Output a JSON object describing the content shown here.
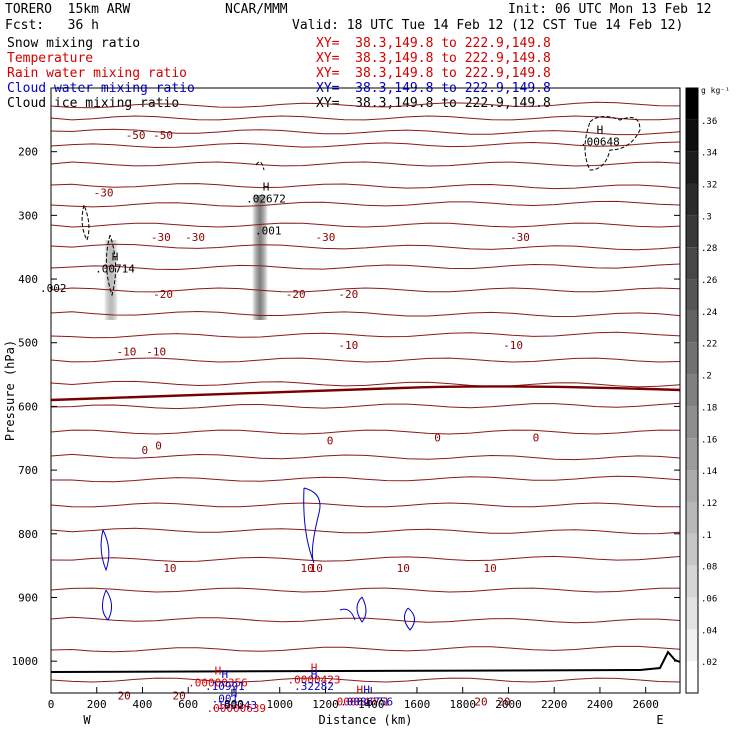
{
  "header": {
    "model": "TORERO  15km ARW",
    "center": "NCAR/MMM",
    "init": "Init: 06 UTC Mon 13 Feb 12",
    "fcst": "Fcst:   36 h",
    "valid": "Valid: 18 UTC Tue 14 Feb 12 (12 CST Tue 14 Feb 12)"
  },
  "fields": [
    {
      "label": "Snow mixing ratio",
      "xy": "",
      "color": "#000000"
    },
    {
      "label": "Temperature",
      "xy": "XY=  38.3,149.8 to 222.9,149.8",
      "color": "#d40000"
    },
    {
      "label": "Rain water mixing ratio",
      "xy": "XY=  38.3,149.8 to 222.9,149.8",
      "color": "#d40000"
    },
    {
      "label": "Cloud water mixing ratio",
      "xy": "XY=  38.3,149.8 to 222.9,149.8",
      "color": "#0000cc"
    },
    {
      "label": "Cloud ice mixing ratio",
      "xy": "XY=  38.3,149.8 to 222.9,149.8",
      "color": "#000000"
    }
  ],
  "snow_xy": "XY=  38.3,149.8 to 222.9,149.8",
  "chart_data": {
    "type": "cross-section",
    "xlabel": "Distance (km)",
    "ylabel": "Pressure (hPa)",
    "xlim": [
      0,
      2750
    ],
    "ylim": [
      1050,
      100
    ],
    "xticks": [
      0,
      200,
      400,
      600,
      800,
      1000,
      1200,
      1400,
      1600,
      1800,
      2000,
      2200,
      2400,
      2600
    ],
    "yticks": [
      200,
      300,
      400,
      500,
      600,
      700,
      800,
      900,
      1000
    ],
    "x_end_labels": {
      "left": "W",
      "right": "E"
    },
    "colorbar": {
      "unit": "g kg⁻¹",
      "ticks": [
        ".02",
        ".04",
        ".06",
        ".08",
        ".1",
        ".12",
        ".14",
        ".16",
        ".18",
        ".2",
        ".22",
        ".24",
        ".26",
        ".28",
        ".3",
        ".32",
        ".34",
        ".36"
      ],
      "range": [
        0,
        0.38
      ]
    },
    "temperature_labels": [
      {
        "x": 370,
        "p": 180,
        "text": "-50"
      },
      {
        "x": 490,
        "p": 180,
        "text": "-50"
      },
      {
        "x": 480,
        "p": 340,
        "text": "-30"
      },
      {
        "x": 630,
        "p": 340,
        "text": "-30"
      },
      {
        "x": 1200,
        "p": 340,
        "text": "-30"
      },
      {
        "x": 2050,
        "p": 340,
        "text": "-30"
      },
      {
        "x": 230,
        "p": 270,
        "text": "-30"
      },
      {
        "x": 490,
        "p": 430,
        "text": "-20"
      },
      {
        "x": 1070,
        "p": 430,
        "text": "-20"
      },
      {
        "x": 1300,
        "p": 430,
        "text": "-20"
      },
      {
        "x": 330,
        "p": 520,
        "text": "-10"
      },
      {
        "x": 460,
        "p": 520,
        "text": "-10"
      },
      {
        "x": 1300,
        "p": 510,
        "text": "-10"
      },
      {
        "x": 2020,
        "p": 510,
        "text": "-10"
      },
      {
        "x": 410,
        "p": 675,
        "text": "0"
      },
      {
        "x": 470,
        "p": 668,
        "text": "0"
      },
      {
        "x": 1220,
        "p": 660,
        "text": "0"
      },
      {
        "x": 1690,
        "p": 655,
        "text": "0"
      },
      {
        "x": 2120,
        "p": 655,
        "text": "0"
      },
      {
        "x": 520,
        "p": 860,
        "text": "10"
      },
      {
        "x": 1120,
        "p": 860,
        "text": "10"
      },
      {
        "x": 1160,
        "p": 860,
        "text": "10"
      },
      {
        "x": 1540,
        "p": 860,
        "text": "10"
      },
      {
        "x": 1920,
        "p": 860,
        "text": "10"
      },
      {
        "x": 320,
        "p": 1060,
        "text": "20"
      },
      {
        "x": 560,
        "p": 1060,
        "text": "20"
      },
      {
        "x": 1880,
        "p": 1070,
        "text": "20"
      },
      {
        "x": 1980,
        "p": 1070,
        "text": "20"
      }
    ],
    "maxima": [
      {
        "x": 730,
        "p": 1040,
        "label": "H",
        "value": ".00000356",
        "color": "#d40000"
      },
      {
        "x": 760,
        "p": 1045,
        "label": "H",
        "value": ".10991",
        "color": "#0000cc"
      },
      {
        "x": 1150,
        "p": 1035,
        "label": "H",
        "value": ".0000423",
        "color": "#d40000"
      },
      {
        "x": 1150,
        "p": 1045,
        "label": "H",
        "value": ".32282",
        "color": "#0000cc"
      },
      {
        "x": 760,
        "p": 1065,
        "label": "",
        "value": ".001",
        "color": "#0000cc"
      },
      {
        "x": 800,
        "p": 1075,
        "label": "H",
        "value": ".199243",
        "color": "#0000cc"
      },
      {
        "x": 810,
        "p": 1080,
        "label": "",
        "value": ".00000639",
        "color": "#d40000"
      },
      {
        "x": 1350,
        "p": 1070,
        "label": "H",
        "value": ".00004071",
        "color": "#d40000"
      },
      {
        "x": 1380,
        "p": 1070,
        "label": "H",
        "value": ".0086756",
        "color": "#0000cc"
      },
      {
        "x": 940,
        "p": 280,
        "label": "H",
        "value": ".02672",
        "color": "#000000"
      },
      {
        "x": 950,
        "p": 330,
        "label": "",
        "value": ".001",
        "color": "#000000"
      },
      {
        "x": 280,
        "p": 390,
        "label": "H",
        "value": ".00714",
        "color": "#000000"
      },
      {
        "x": 2400,
        "p": 190,
        "label": "H",
        "value": ".00648",
        "color": "#000000"
      },
      {
        "x": 10,
        "p": 420,
        "label": "",
        "value": ".002",
        "color": "#000000"
      }
    ]
  }
}
